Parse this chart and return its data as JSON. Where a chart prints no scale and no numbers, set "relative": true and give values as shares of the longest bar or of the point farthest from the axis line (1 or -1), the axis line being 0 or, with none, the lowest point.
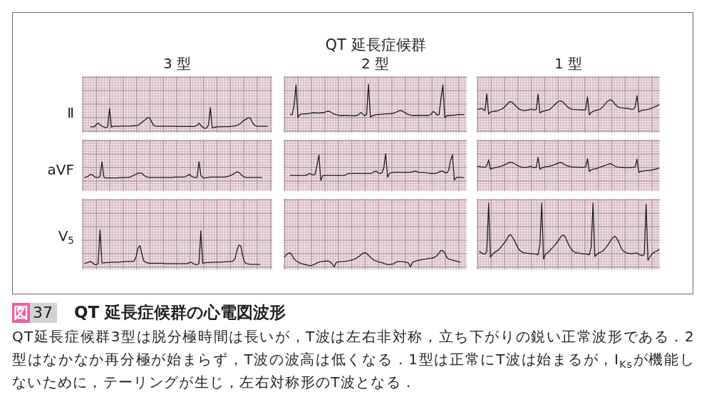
{
  "chart_data": [
    {
      "type": "other",
      "title": "QT 延長症候群"
    },
    {
      "type": "line",
      "title": "3 型",
      "ylabel": "Ⅱ",
      "relative": true,
      "grid": true,
      "color": "#1e1e1e",
      "categories": [
        null,
        null,
        null,
        null,
        null,
        null,
        null,
        null,
        null,
        null,
        null,
        null,
        null,
        null,
        null,
        null,
        null,
        null,
        null,
        null,
        null,
        null,
        null,
        null,
        null,
        null,
        null,
        null,
        null,
        null,
        null,
        null,
        null,
        null,
        null,
        null,
        null,
        null,
        null,
        null,
        null,
        null,
        null,
        null,
        null,
        null,
        null,
        null,
        null,
        null,
        null,
        null,
        null,
        null,
        null,
        null,
        null,
        null,
        null,
        null,
        null,
        null,
        null,
        null,
        null,
        null,
        null,
        null,
        null,
        null,
        null,
        null,
        null,
        null,
        null,
        null,
        null,
        null,
        null,
        null,
        null,
        null,
        null,
        null,
        null,
        null,
        null,
        null,
        null,
        null,
        null,
        null,
        null,
        null,
        null,
        null,
        null,
        null,
        null,
        null
      ],
      "values": [
        null,
        null,
        null,
        null,
        0.07,
        0.07,
        0.07,
        0.18,
        0.25,
        0.17,
        0.1,
        0.06,
        0.02,
        0.07,
        0.96,
        0.05,
        0.1,
        0.1,
        0.1,
        0.1,
        0.11,
        0.11,
        0.11,
        0.11,
        0.11,
        0.11,
        0.12,
        0.12,
        0.13,
        0.14,
        0.22,
        0.28,
        0.36,
        0.43,
        0.51,
        0.51,
        0.34,
        0.16,
        0.11,
        0.1,
        0.1,
        0.1,
        0.1,
        0.1,
        0.1,
        0.1,
        0.1,
        0.1,
        0.1,
        0.1,
        0.09,
        0.09,
        0.09,
        0.09,
        0.09,
        0.09,
        0.09,
        0.09,
        0.09,
        0.1,
        0.14,
        0.24,
        0.14,
        0.05,
        0,
        0.01,
        0.16,
        1,
        0.02,
        0.04,
        0.06,
        0.07,
        0.07,
        0.07,
        0.08,
        0.08,
        0.08,
        0.08,
        0.1,
        0.1,
        0.12,
        0.14,
        0.19,
        0.25,
        0.34,
        0.4,
        0.45,
        0.51,
        0.48,
        0.3,
        0.17,
        0.11,
        0.1,
        0.1,
        0.1,
        0.1,
        0.1,
        0.1,
        null,
        null
      ]
    },
    {
      "type": "line",
      "title": "2 型",
      "relative": true,
      "grid": true,
      "color": "#1e1e1e",
      "categories": [
        null,
        null,
        null,
        null,
        null,
        null,
        null,
        null,
        null,
        null,
        null,
        null,
        null,
        null,
        null,
        null,
        null,
        null,
        null,
        null,
        null,
        null,
        null,
        null,
        null,
        null,
        null,
        null,
        null,
        null,
        null,
        null,
        null,
        null,
        null,
        null,
        null,
        null,
        null,
        null,
        null,
        null,
        null,
        null,
        null,
        null,
        null,
        null,
        null,
        null,
        null,
        null,
        null,
        null,
        null,
        null,
        null,
        null,
        null,
        null,
        null,
        null,
        null,
        null,
        null,
        null,
        null,
        null,
        null,
        null,
        null,
        null,
        null,
        null,
        null,
        null,
        null,
        null,
        null,
        null,
        null,
        null,
        null,
        null,
        null,
        null,
        null,
        null,
        null,
        null,
        null,
        null,
        null,
        null,
        null,
        null
      ],
      "values": [
        null,
        null,
        null,
        0.1,
        0.1,
        0.38,
        0.98,
        0.01,
        0.1,
        0.11,
        0.12,
        0.12,
        0.12,
        0.13,
        0.14,
        0.15,
        0.15,
        0.14,
        0.14,
        0.15,
        0.15,
        0.16,
        0.19,
        0.2,
        0.18,
        0.14,
        0.11,
        0.1,
        0.08,
        0.07,
        0.07,
        0.07,
        0.07,
        0.07,
        0.06,
        0.06,
        0.06,
        0.06,
        0.07,
        0.11,
        0.16,
        0.11,
        0.06,
        0.1,
        1,
        0.02,
        0.06,
        0.08,
        0.1,
        0.1,
        0.1,
        0.11,
        0.11,
        0.12,
        0.12,
        0.12,
        0.13,
        0.13,
        0.16,
        0.18,
        0.21,
        0.22,
        0.19,
        0.16,
        0.12,
        0.1,
        0.08,
        0.07,
        0.07,
        0.07,
        0.07,
        0.07,
        0.07,
        0.07,
        0.07,
        0.07,
        0.08,
        0.12,
        0.19,
        0.15,
        0.08,
        0.1,
        0.57,
        0.98,
        0,
        0.06,
        0.07,
        0.07,
        0.08,
        0.08,
        0.09,
        0.1,
        0.1,
        0.1,
        0.1,
        null
      ]
    },
    {
      "type": "line",
      "title": "1 型",
      "relative": true,
      "grid": true,
      "color": "#1e1e1e",
      "categories": [
        null,
        null,
        null,
        null,
        null,
        null,
        null,
        null,
        null,
        null,
        null,
        null,
        null,
        null,
        null,
        null,
        null,
        null,
        null,
        null,
        null,
        null,
        null,
        null,
        null,
        null,
        null,
        null,
        null,
        null,
        null,
        null,
        null,
        null,
        null,
        null,
        null,
        null,
        null,
        null,
        null,
        null,
        null,
        null,
        null,
        null,
        null,
        null,
        null,
        null,
        null,
        null,
        null,
        null,
        null,
        null,
        null,
        null,
        null,
        null,
        null,
        null,
        null,
        null,
        null,
        null,
        null,
        null,
        null,
        null,
        null,
        null,
        null,
        null,
        null,
        null,
        null,
        null,
        null,
        null,
        null,
        null,
        null,
        null,
        null,
        null,
        null,
        null,
        null,
        null,
        null,
        null,
        null,
        null,
        null,
        null,
        null,
        null,
        null,
        null
      ],
      "values": [
        0.26,
        0.28,
        0.3,
        0.26,
        0.2,
        1,
        0.03,
        0.13,
        0.15,
        0.17,
        0.18,
        0.19,
        0.23,
        0.27,
        0.32,
        0.4,
        0.49,
        0.59,
        0.63,
        0.59,
        0.5,
        0.4,
        0.32,
        0.26,
        0.23,
        0.2,
        0.2,
        0.22,
        0.23,
        0.27,
        0.25,
        0.23,
        0.25,
        0.98,
        0.09,
        0.15,
        0.18,
        0.19,
        0.22,
        0.24,
        0.3,
        0.38,
        0.47,
        0.56,
        0.63,
        0.66,
        0.64,
        0.58,
        0.48,
        0.38,
        0.32,
        0.28,
        0.26,
        0.25,
        0.24,
        0.24,
        0.23,
        0.23,
        0.23,
        0.24,
        0.86,
        0,
        0.1,
        0.16,
        0.19,
        0.22,
        0.24,
        0.28,
        0.35,
        0.44,
        0.56,
        0.65,
        0.7,
        0.7,
        0.63,
        0.51,
        0.42,
        0.36,
        0.34,
        0.33,
        0.32,
        0.3,
        0.32,
        0.28,
        0.26,
        0.26,
        0.38,
        0.91,
        0.13,
        0.19,
        0.22,
        0.23,
        0.24,
        0.26,
        0.28,
        0.32,
        0.35,
        0.39,
        0.43,
        0.48
      ]
    },
    {
      "type": "line",
      "ylabel": "aVF",
      "relative": true,
      "grid": true,
      "color": "#1e1e1e",
      "categories": [
        null,
        null,
        null,
        null,
        null,
        null,
        null,
        null,
        null,
        null,
        null,
        null,
        null,
        null,
        null,
        null,
        null,
        null,
        null,
        null,
        null,
        null,
        null,
        null,
        null,
        null,
        null,
        null,
        null,
        null,
        null,
        null,
        null,
        null,
        null,
        null,
        null,
        null,
        null,
        null,
        null,
        null,
        null,
        null,
        null,
        null,
        null,
        null,
        null,
        null,
        null,
        null,
        null,
        null,
        null,
        null,
        null,
        null,
        null,
        null,
        null,
        null,
        null,
        null,
        null,
        null,
        null,
        null,
        null,
        null,
        null,
        null,
        null,
        null,
        null,
        null,
        null,
        null,
        null,
        null,
        null,
        null,
        null,
        null,
        null,
        null,
        null,
        null,
        null,
        null,
        null,
        null,
        null,
        null,
        null,
        null,
        null,
        null,
        null,
        null
      ],
      "values": [
        null,
        0.03,
        0.06,
        0.12,
        0.22,
        0.2,
        0.08,
        0.03,
        0.03,
        0.08,
        1,
        0.05,
        0,
        0,
        0,
        0,
        0,
        0,
        0,
        0.02,
        0.02,
        0.02,
        0.02,
        0.03,
        0.03,
        0.06,
        0.12,
        0.18,
        0.23,
        0.29,
        0.31,
        0.28,
        0.17,
        0.09,
        0.05,
        0.03,
        0.03,
        0.03,
        0.03,
        0.03,
        0.03,
        0.03,
        0.03,
        0.03,
        0.03,
        0.03,
        0.03,
        0.03,
        0.05,
        0.05,
        0.05,
        0.05,
        0.05,
        0.06,
        0.08,
        0.15,
        0.22,
        0.11,
        0.05,
        0.03,
        0.03,
        1,
        0.15,
        0.02,
        0,
        0.02,
        0.03,
        0.05,
        0.05,
        0.05,
        0.05,
        0.05,
        0.05,
        0.05,
        0.05,
        0.06,
        0.09,
        0.12,
        0.17,
        0.23,
        0.31,
        0.37,
        0.34,
        0.22,
        0.11,
        0.05,
        0.03,
        0.03,
        0.03,
        0.03,
        0.03,
        0.03,
        0.03,
        0.03,
        0.03,
        null,
        null,
        null,
        null,
        null
      ]
    },
    {
      "type": "line",
      "relative": true,
      "grid": true,
      "color": "#1e1e1e",
      "categories": [
        null,
        null,
        null,
        null,
        null,
        null,
        null,
        null,
        null,
        null,
        null,
        null,
        null,
        null,
        null,
        null,
        null,
        null,
        null,
        null,
        null,
        null,
        null,
        null,
        null,
        null,
        null,
        null,
        null,
        null,
        null,
        null,
        null,
        null,
        null,
        null,
        null,
        null,
        null,
        null,
        null,
        null,
        null,
        null,
        null,
        null,
        null,
        null,
        null,
        null,
        null,
        null,
        null,
        null,
        null,
        null,
        null,
        null,
        null,
        null,
        null,
        null,
        null,
        null,
        null,
        null,
        null,
        null,
        null,
        null,
        null,
        null,
        null,
        null,
        null,
        null,
        null,
        null,
        null,
        null,
        null,
        null,
        null,
        null,
        null,
        null,
        null,
        null,
        null,
        null,
        null,
        null,
        null,
        null,
        null,
        null
      ],
      "values": [
        null,
        null,
        null,
        0.19,
        0.19,
        0.19,
        0.19,
        0.19,
        0.19,
        0.19,
        0.19,
        0.19,
        0.22,
        0.26,
        0.23,
        0.21,
        0.23,
        0.56,
        0.95,
        0,
        0.18,
        0.19,
        0.19,
        0.19,
        0.19,
        0.19,
        0.19,
        0.19,
        0.19,
        0.19,
        0.19,
        0.19,
        0.21,
        0.25,
        0.26,
        0.26,
        0.26,
        0.26,
        0.26,
        0.26,
        0.26,
        0.26,
        0.26,
        0.26,
        0.26,
        0.26,
        0.28,
        0.33,
        0.35,
        0.29,
        0.26,
        0.28,
        0.47,
        1,
        0.12,
        0.27,
        0.29,
        0.3,
        0.31,
        0.31,
        0.31,
        0.31,
        0.3,
        0.3,
        0.31,
        0.31,
        0.31,
        0.32,
        0.35,
        0.34,
        0.31,
        0.3,
        0.3,
        0.3,
        0.29,
        0.28,
        0.27,
        0.26,
        0.26,
        0.26,
        0.28,
        0.32,
        0.35,
        0.34,
        0.3,
        0.28,
        0.37,
        0.75,
        0.95,
        0.02,
        0.11,
        0.12,
        0.12,
        0.11,
        0.11,
        null
      ]
    },
    {
      "type": "line",
      "relative": true,
      "grid": true,
      "color": "#1e1e1e",
      "categories": [
        null,
        null,
        null,
        null,
        null,
        null,
        null,
        null,
        null,
        null,
        null,
        null,
        null,
        null,
        null,
        null,
        null,
        null,
        null,
        null,
        null,
        null,
        null,
        null,
        null,
        null,
        null,
        null,
        null,
        null,
        null,
        null,
        null,
        null,
        null,
        null,
        null,
        null,
        null,
        null,
        null,
        null,
        null,
        null,
        null,
        null,
        null,
        null,
        null,
        null,
        null,
        null,
        null,
        null,
        null,
        null,
        null,
        null,
        null,
        null,
        null,
        null,
        null,
        null,
        null,
        null,
        null,
        null,
        null,
        null,
        null,
        null,
        null,
        null,
        null,
        null,
        null,
        null,
        null,
        null,
        null,
        null,
        null,
        null,
        null,
        null,
        null,
        null,
        null,
        null,
        null,
        null,
        null,
        null,
        null,
        null,
        null,
        null,
        null,
        null
      ],
      "values": [
        0.4,
        0.39,
        0.37,
        0.35,
        0.34,
        0.44,
        0.85,
        0.21,
        0.27,
        0.29,
        0.32,
        0.35,
        0.39,
        0.42,
        0.47,
        0.52,
        0.58,
        0.65,
        0.68,
        0.65,
        0.6,
        0.52,
        0.44,
        0.39,
        0.35,
        0.34,
        0.32,
        0.34,
        0.37,
        0.4,
        0.34,
        0.32,
        0.34,
        1,
        0.21,
        0.29,
        0.34,
        0.37,
        0.39,
        0.4,
        0.44,
        0.47,
        0.52,
        0.56,
        0.63,
        0.66,
        0.65,
        0.56,
        0.48,
        0.44,
        0.4,
        0.37,
        0.35,
        0.35,
        0.35,
        0.34,
        0.34,
        0.34,
        0.34,
        0.37,
        0.92,
        0.05,
        0.16,
        0.21,
        0.23,
        0.26,
        0.31,
        0.35,
        0.39,
        0.44,
        0.48,
        0.53,
        0.58,
        0.56,
        0.48,
        0.42,
        0.37,
        0.35,
        0.34,
        0.34,
        0.32,
        0.32,
        0.32,
        0.32,
        0.32,
        0.34,
        0.37,
        0.89,
        0,
        0.06,
        0.08,
        0.1,
        0.11,
        0.11,
        0.13,
        0.15,
        0.18,
        0.21,
        0.24,
        0.27
      ]
    },
    {
      "type": "line",
      "ylabel": "V$_{5}$",
      "relative": true,
      "grid": true,
      "color": "#1e1e1e",
      "categories": [
        null,
        null,
        null,
        null,
        null,
        null,
        null,
        null,
        null,
        null,
        null,
        null,
        null,
        null,
        null,
        null,
        null,
        null,
        null,
        null,
        null,
        null,
        null,
        null,
        null,
        null,
        null,
        null,
        null,
        null,
        null,
        null,
        null,
        null,
        null,
        null,
        null,
        null,
        null,
        null,
        null,
        null,
        null,
        null,
        null,
        null,
        null,
        null,
        null,
        null,
        null,
        null,
        null,
        null,
        null,
        null,
        null,
        null,
        null,
        null,
        null,
        null,
        null,
        null,
        null,
        null,
        null,
        null,
        null,
        null,
        null,
        null,
        null,
        null,
        null,
        null,
        null,
        null,
        null,
        null,
        null,
        null,
        null,
        null,
        null,
        null,
        null,
        null,
        null,
        null,
        null,
        null,
        null,
        null,
        null,
        null,
        null,
        null,
        null,
        null
      ],
      "values": [
        null,
        0.04,
        0.05,
        0.07,
        0.09,
        0.06,
        0.01,
        0,
        0.03,
        1,
        0.05,
        0.05,
        0.06,
        0.06,
        0.06,
        0.07,
        0.07,
        0.07,
        0.07,
        0.07,
        0.08,
        0.08,
        0.09,
        0.09,
        0.09,
        0.09,
        0.09,
        0.11,
        0.24,
        0.49,
        0.55,
        0.31,
        0.11,
        0.07,
        0.05,
        0.04,
        0.04,
        0.04,
        0.04,
        0.04,
        0.04,
        0.04,
        0.04,
        0.03,
        0.03,
        0.03,
        0.03,
        0.03,
        0.03,
        0.03,
        0.03,
        0.03,
        0.03,
        0.03,
        0.03,
        0.03,
        0.06,
        0.07,
        0.03,
        0.01,
        0,
        0.03,
        0.98,
        0.04,
        0.05,
        0.06,
        0.06,
        0.06,
        0.07,
        0.07,
        0.07,
        0.07,
        0.07,
        0.07,
        0.08,
        0.08,
        0.09,
        0.09,
        0.09,
        0.11,
        0.18,
        0.42,
        0.57,
        0.54,
        0.25,
        0.07,
        0.03,
        0.02,
        0.01,
        0.01,
        0.01,
        0.01,
        0.01,
        0.01,
        null,
        null,
        null,
        null,
        null,
        null
      ]
    },
    {
      "type": "line",
      "relative": true,
      "grid": true,
      "color": "#1e1e1e",
      "categories": [
        null,
        null,
        null,
        null,
        null,
        null,
        null,
        null,
        null,
        null,
        null,
        null,
        null,
        null,
        null,
        null,
        null,
        null,
        null,
        null,
        null,
        null,
        null,
        null,
        null,
        null,
        null,
        null,
        null,
        null,
        null,
        null,
        null,
        null,
        null,
        null,
        null,
        null,
        null,
        null,
        null,
        null,
        null,
        null,
        null,
        null,
        null,
        null,
        null,
        null,
        null,
        null,
        null,
        null,
        null,
        null,
        null,
        null,
        null,
        null,
        null,
        null,
        null,
        null,
        null,
        null,
        null,
        null,
        null,
        null,
        null,
        null,
        null,
        null,
        null,
        null,
        null,
        null,
        null,
        null,
        null,
        null,
        null,
        null,
        null,
        null,
        null,
        null,
        null,
        null,
        null,
        null,
        null,
        null,
        null,
        null
      ],
      "values": [
        0.61,
        0.74,
        0.83,
        0.85,
        0.7,
        0.47,
        0.38,
        0.3,
        0.24,
        0.2,
        0.17,
        0.14,
        0.11,
        0.08,
        0.09,
        0.12,
        0.18,
        0.24,
        0.29,
        0.32,
        0.33,
        0.35,
        0.36,
        0.35,
        0.3,
        0.18,
        0,
        0.26,
        0.3,
        0.32,
        0.33,
        0.33,
        0.35,
        0.36,
        0.38,
        0.41,
        0.45,
        0.48,
        0.56,
        0.64,
        0.73,
        0.82,
        0.86,
        0.82,
        0.7,
        0.59,
        0.48,
        0.41,
        0.36,
        0.32,
        0.29,
        0.26,
        0.21,
        0.18,
        0.15,
        0.15,
        0.17,
        0.18,
        0.26,
        0.32,
        0.33,
        0.33,
        0.33,
        0.3,
        0.27,
        0.23,
        0,
        0.27,
        0.33,
        0.36,
        0.39,
        0.42,
        0.45,
        0.47,
        0.48,
        0.5,
        0.52,
        0.53,
        0.55,
        0.61,
        0.7,
        0.85,
        1,
        0.97,
        0.85,
        0.58,
        0.48,
        0.45,
        0.41,
        0.38,
        0.35,
        0.32,
        0.29,
        null,
        null,
        null
      ]
    },
    {
      "type": "line",
      "relative": true,
      "grid": true,
      "color": "#1e1e1e",
      "categories": [
        null,
        null,
        null,
        null,
        null,
        null,
        null,
        null,
        null,
        null,
        null,
        null,
        null,
        null,
        null,
        null,
        null,
        null,
        null,
        null,
        null,
        null,
        null,
        null,
        null,
        null,
        null,
        null,
        null,
        null,
        null,
        null,
        null,
        null,
        null,
        null,
        null,
        null,
        null,
        null,
        null,
        null,
        null,
        null,
        null,
        null,
        null,
        null,
        null,
        null,
        null,
        null,
        null,
        null,
        null,
        null,
        null,
        null,
        null,
        null,
        null,
        null,
        null,
        null,
        null,
        null,
        null,
        null,
        null,
        null,
        null,
        null,
        null,
        null,
        null,
        null,
        null,
        null,
        null,
        null,
        null,
        null,
        null,
        null,
        null,
        null,
        null,
        null,
        null,
        null,
        null,
        null,
        null,
        null,
        null,
        null,
        null,
        null,
        null,
        null
      ],
      "values": [
        null,
        0.15,
        0.13,
        0.11,
        0.11,
        0.15,
        1,
        0.05,
        0.1,
        0.13,
        0.15,
        0.17,
        0.2,
        0.24,
        0.28,
        0.32,
        0.37,
        0.43,
        0.45,
        0.4,
        0.35,
        0.28,
        0.22,
        0.17,
        0.15,
        0.13,
        0.13,
        0.12,
        0.12,
        0.11,
        0.11,
        0.11,
        0.1,
        0.1,
        0.27,
        1,
        0.02,
        0.1,
        0.13,
        0.15,
        0.19,
        0.22,
        0.26,
        0.3,
        0.34,
        0.39,
        0.43,
        0.44,
        0.4,
        0.32,
        0.25,
        0.2,
        0.16,
        0.14,
        0.13,
        0.12,
        0.12,
        0.11,
        0.11,
        0.11,
        0.1,
        0.1,
        0.23,
        1,
        0.06,
        0.1,
        0.12,
        0.14,
        0.15,
        0.18,
        0.22,
        0.26,
        0.31,
        0.36,
        0.4,
        0.42,
        0.38,
        0.32,
        0.24,
        0.18,
        0.15,
        0.13,
        0.12,
        0.12,
        0.11,
        0.12,
        0.12,
        0.13,
        0.1,
        0.09,
        0.08,
        0.1,
        0.98,
        0,
        0.05,
        0.1,
        0.13,
        0.15,
        0.16,
        0.19
      ]
    },
    {
      "type": "other",
      "title": "QT 延長症候群の心電図波形",
      "annotations": [
        "図",
        "37",
        "QT延長症候群3型は脱分極時間は長いが，T波は左右非対称，立ち下がりの鋭い正常波形である．2型はなかなか再分極が始まらず，T波の波高は低くなる．1型は正常にT波は始まるが，I$_{Ks}$が機能しないために，テーリングが生じ，左右対称形のT波となる．"
      ]
    }
  ]
}
